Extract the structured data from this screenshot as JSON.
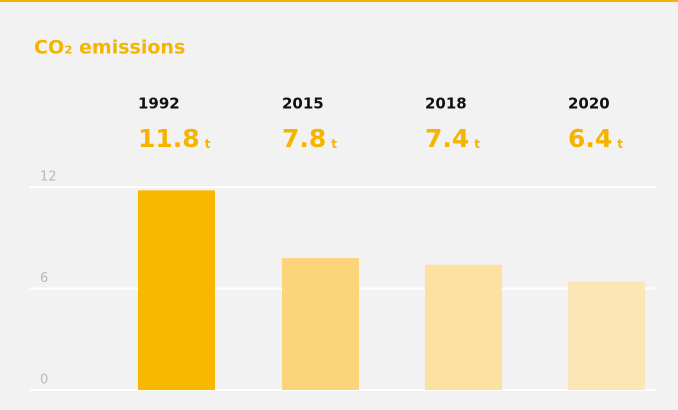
{
  "chart_data": {
    "type": "bar",
    "title": "CO₂ emissions",
    "categories": [
      "1992",
      "2015",
      "2018",
      "2020"
    ],
    "values": [
      11.8,
      7.8,
      7.4,
      6.4
    ],
    "unit": "t",
    "colors": [
      "#f9b800",
      "#fcd57a",
      "#fde1a3",
      "#fde6b5"
    ],
    "ylim": [
      0,
      12
    ],
    "yticks": [
      0,
      6,
      12
    ],
    "grid": true
  }
}
